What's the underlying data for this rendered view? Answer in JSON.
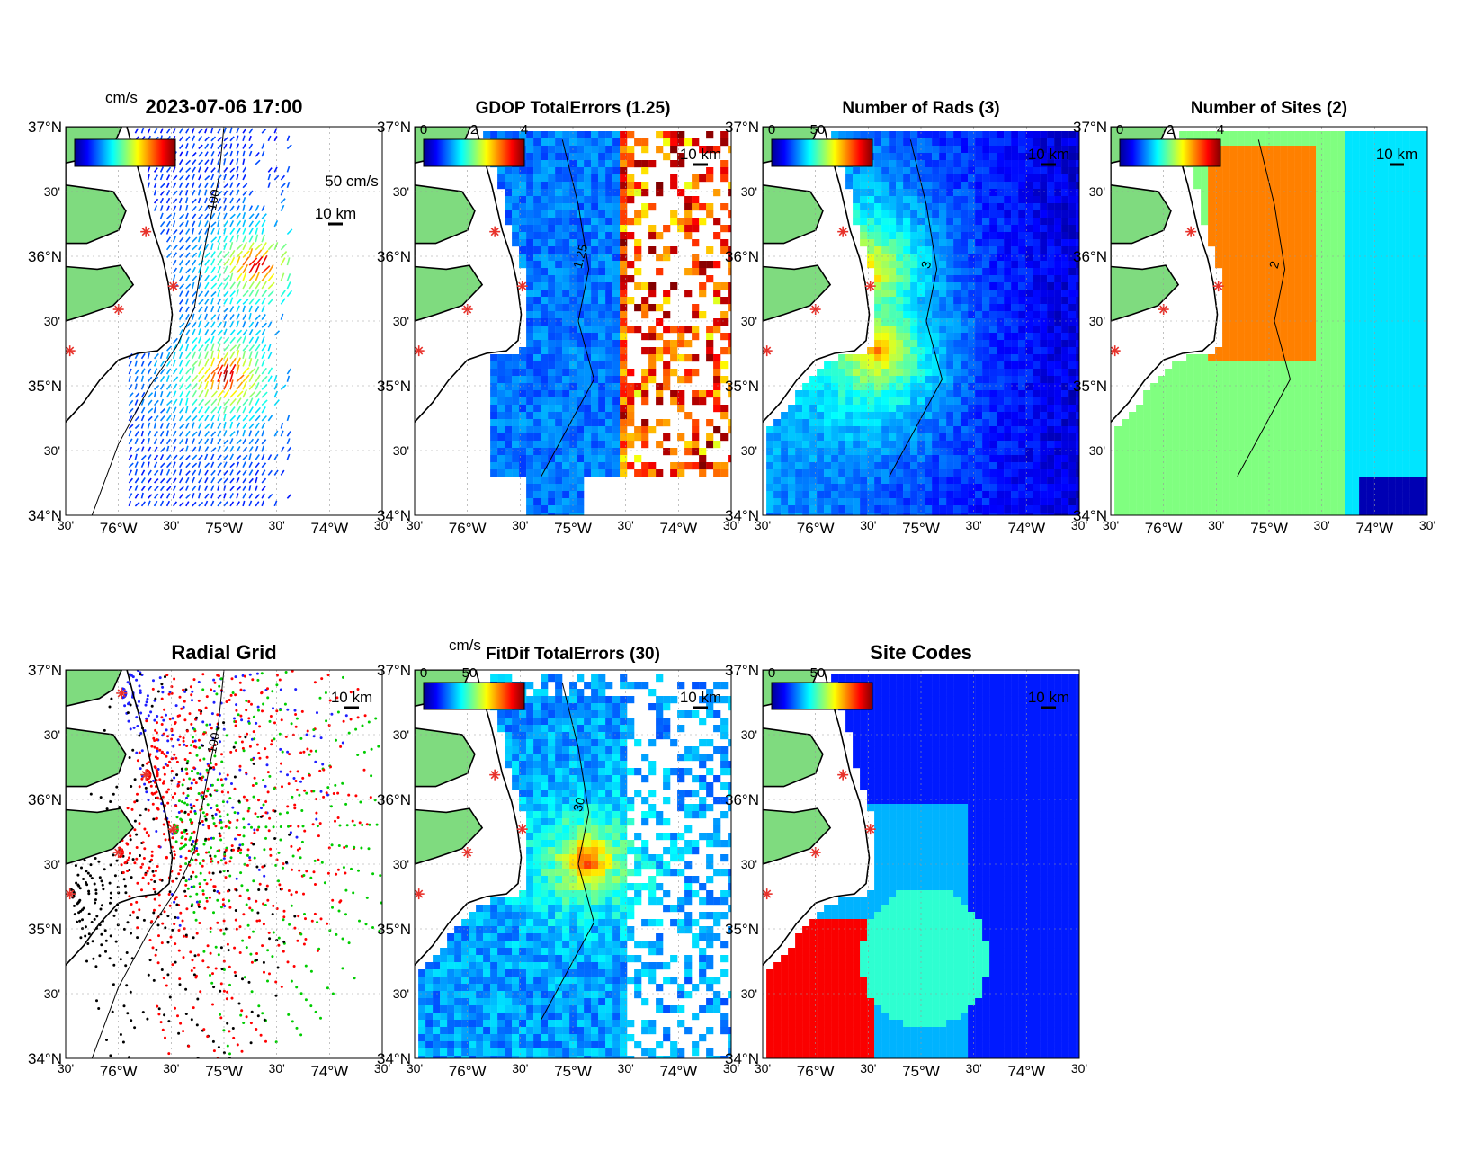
{
  "figure": {
    "title": "2023-07-06 17:00",
    "unit_label_top": "cm/s",
    "unit_label_fitdif": "cm/s"
  },
  "axes": {
    "lat_major": [
      "37°N",
      "36°N",
      "35°N",
      "34°N"
    ],
    "lat_minor": "30'",
    "lon_major": [
      "76°W",
      "75°W",
      "74°W"
    ],
    "lon_minor": "30'"
  },
  "colors": {
    "land": "#7fdb7f",
    "coast": "#000000",
    "site_marker": "#e8322b",
    "contour": "#000000",
    "colormap": [
      "#00008f",
      "#0000ff",
      "#0080ff",
      "#00ffff",
      "#80ff80",
      "#ffff00",
      "#ff8000",
      "#ff0000",
      "#800000"
    ]
  },
  "panels": [
    {
      "id": "totals",
      "title": "",
      "colorbar_ticks": [],
      "scale_bar": "10 km",
      "vector_scale": "50 cm/s",
      "contour_label": "100"
    },
    {
      "id": "gdop",
      "title": "GDOP TotalErrors (1.25)",
      "colorbar_ticks": [
        "0",
        "2",
        "4"
      ],
      "scale_bar": "10 km",
      "contour_label": "1.25"
    },
    {
      "id": "nrads",
      "title": "Number of Rads (3)",
      "colorbar_ticks": [
        "0",
        "50"
      ],
      "scale_bar": "10 km",
      "contour_label": "3"
    },
    {
      "id": "nsites",
      "title": "Number of Sites (2)",
      "colorbar_ticks": [
        "0",
        "2",
        "4"
      ],
      "scale_bar": "10 km",
      "contour_label": "2"
    },
    {
      "id": "radgrid",
      "title": "Radial Grid",
      "colorbar_ticks": [],
      "scale_bar": "10 km",
      "contour_label": "100"
    },
    {
      "id": "fitdif",
      "title": "FitDif TotalErrors (30)",
      "colorbar_ticks": [
        "0",
        "50"
      ],
      "scale_bar": "10 km",
      "contour_label": "30"
    },
    {
      "id": "sitecodes",
      "title": "Site Codes",
      "colorbar_ticks": [
        "0",
        "50"
      ],
      "scale_bar": "10 km",
      "contour_label": ""
    }
  ],
  "sites": [
    {
      "lon": -75.97,
      "lat": 36.82
    },
    {
      "lon": -75.74,
      "lat": 36.19
    },
    {
      "lon": -75.48,
      "lat": 35.77
    },
    {
      "lon": -76.0,
      "lat": 35.59
    },
    {
      "lon": -76.46,
      "lat": 35.27
    }
  ]
}
